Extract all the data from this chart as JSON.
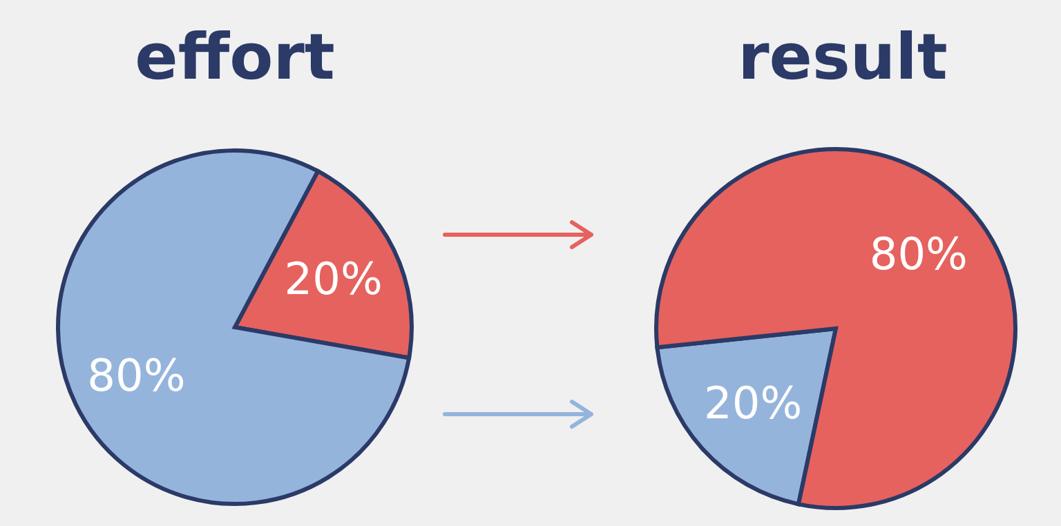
{
  "chart_data": [
    {
      "type": "pie",
      "title": "effort",
      "categories": [
        null,
        null
      ],
      "values": [
        20,
        80
      ],
      "colors": [
        "#e6625e",
        "#94b4dc"
      ],
      "value_labels": [
        "20%",
        "80%"
      ]
    },
    {
      "type": "pie",
      "title": "result",
      "categories": [
        null,
        null
      ],
      "values": [
        20,
        80
      ],
      "colors": [
        "#94b4dc",
        "#e6625e"
      ],
      "value_labels": [
        "20%",
        "80%"
      ]
    }
  ]
}
